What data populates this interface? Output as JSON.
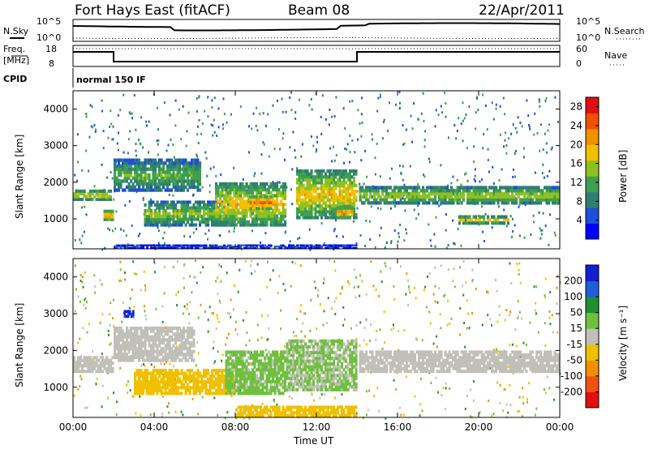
{
  "header": {
    "title": "Fort Hays East (fitACF)",
    "beam": "Beam 08",
    "date": "22/Apr/2011"
  },
  "top_panels": {
    "nsky_label": "N.Sky",
    "nsearch_label": "N.Search",
    "noise_ticks_left": [
      "10^5",
      "10^0"
    ],
    "noise_ticks_right": [
      "10^5",
      "10^0"
    ],
    "freq_label": "Freq.",
    "freq_unit": "[MHz]",
    "freq_ticks": [
      "18",
      "8"
    ],
    "nave_label": "Nave",
    "nave_ticks": [
      "60",
      "0"
    ],
    "cpid_label": "CPID",
    "cpid_value": "normal 150 IF"
  },
  "colors": {
    "power_scale": [
      "#0000ff",
      "#1e4fd8",
      "#2f7f70",
      "#3f9f50",
      "#90c020",
      "#f0c000",
      "#f09000",
      "#f05000",
      "#e01010"
    ],
    "velocity_scale": [
      "#1020d0",
      "#1e5fd8",
      "#208f30",
      "#70c040",
      "#c0c0b8",
      "#f0c000",
      "#f09000",
      "#f05010",
      "#e01010"
    ]
  },
  "chart_data": [
    {
      "type": "heatmap",
      "name": "power",
      "title": "",
      "ylabel": "Slant Range [km]",
      "xlabel": "",
      "ylim": [
        180,
        4500
      ],
      "yticks": [
        "1000",
        "2000",
        "3000",
        "4000"
      ],
      "xticks": [
        "00:00",
        "04:00",
        "08:00",
        "12:00",
        "16:00",
        "20:00",
        "00:00"
      ],
      "colorbar": {
        "label": "Power [dB]",
        "ticks": [
          "4",
          "8",
          "12",
          "16",
          "20",
          "24",
          "28"
        ],
        "range": [
          0,
          30
        ]
      },
      "bands": [
        {
          "t0": 0.0,
          "t1": 1.9,
          "r0": 1500,
          "r1": 1800,
          "v": 22
        },
        {
          "t0": 1.5,
          "t1": 2.0,
          "r0": 950,
          "r1": 1250,
          "v": 26
        },
        {
          "t0": 2.0,
          "t1": 6.3,
          "r0": 1750,
          "r1": 2650,
          "v": 14
        },
        {
          "t0": 3.5,
          "t1": 8.0,
          "r0": 800,
          "r1": 1500,
          "v": 16
        },
        {
          "t0": 7.0,
          "t1": 10.5,
          "r0": 800,
          "r1": 2000,
          "v": 20
        },
        {
          "t0": 8.7,
          "t1": 9.8,
          "r0": 1250,
          "r1": 1650,
          "v": 28
        },
        {
          "t0": 11.0,
          "t1": 14.0,
          "r0": 1000,
          "r1": 2350,
          "v": 20
        },
        {
          "t0": 13.0,
          "t1": 13.8,
          "r0": 1000,
          "r1": 1350,
          "v": 27
        },
        {
          "t0": 14.1,
          "t1": 24.0,
          "r0": 1400,
          "r1": 1900,
          "v": 18
        },
        {
          "t0": 19.0,
          "t1": 21.5,
          "r0": 850,
          "r1": 1100,
          "v": 22
        },
        {
          "t0": 2.0,
          "t1": 14.0,
          "r0": 200,
          "r1": 300,
          "v": 6
        }
      ]
    },
    {
      "type": "heatmap",
      "name": "velocity",
      "title": "",
      "ylabel": "Slant Range [km]",
      "xlabel": "Time UT",
      "ylim": [
        180,
        4500
      ],
      "yticks": [
        "1000",
        "2000",
        "3000",
        "4000"
      ],
      "xticks": [
        "00:00",
        "04:00",
        "08:00",
        "12:00",
        "16:00",
        "20:00",
        "00:00"
      ],
      "colorbar": {
        "label": "Velocity [m s⁻¹]",
        "ticks": [
          "200",
          "100",
          "50",
          "15",
          "-15",
          "-50",
          "-100",
          "-200"
        ],
        "range": [
          -250,
          250
        ]
      },
      "bands": [
        {
          "t0": 0.0,
          "t1": 2.0,
          "r0": 1400,
          "r1": 1850,
          "v": 0
        },
        {
          "t0": 2.0,
          "t1": 6.0,
          "r0": 1700,
          "r1": 2650,
          "v": 0
        },
        {
          "t0": 3.0,
          "t1": 8.0,
          "r0": 800,
          "r1": 1500,
          "v": -60
        },
        {
          "t0": 7.5,
          "t1": 10.5,
          "r0": 800,
          "r1": 2000,
          "v": 40
        },
        {
          "t0": 10.5,
          "t1": 14.0,
          "r0": 900,
          "r1": 2300,
          "v": 30
        },
        {
          "t0": 14.1,
          "t1": 24.0,
          "r0": 1400,
          "r1": 2000,
          "v": 0
        },
        {
          "t0": 8.0,
          "t1": 14.0,
          "r0": 200,
          "r1": 500,
          "v": -60
        },
        {
          "t0": 2.5,
          "t1": 3.0,
          "r0": 2900,
          "r1": 3100,
          "v": 200
        }
      ]
    }
  ]
}
